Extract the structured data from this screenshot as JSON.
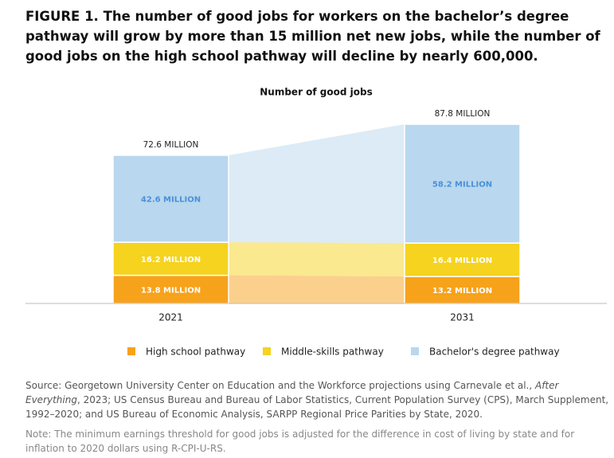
{
  "chart_data": {
    "type": "stacked-bar",
    "figure_label": "FIGURE 1.",
    "title": "The number of good jobs for workers on the bachelor’s degree pathway will grow by more than 15 million net new jobs, while the number of good jobs on the high school pathway will decline by nearly 600,000.",
    "subtitle": "Number of good jobs",
    "categories": [
      "2021",
      "2031"
    ],
    "series": [
      {
        "name": "High school pathway",
        "color": "#f7a21b",
        "values": [
          13.8,
          13.2
        ],
        "value_labels": [
          "13.8 MILLION",
          "13.2 MILLION"
        ]
      },
      {
        "name": "Middle-skills pathway",
        "color": "#f5d31f",
        "values": [
          16.2,
          16.4
        ],
        "value_labels": [
          "16.2 MILLION",
          "16.4 MILLION"
        ]
      },
      {
        "name": "Bachelor's degree pathway",
        "color": "#b9d7ee",
        "values": [
          42.6,
          58.2
        ],
        "value_labels": [
          "42.6 MILLION",
          "58.2 MILLION"
        ]
      }
    ],
    "totals": {
      "values": [
        72.6,
        87.8
      ],
      "value_labels": [
        "72.6 MILLION",
        "87.8 MILLION"
      ]
    },
    "source": [
      "Source: Georgetown University Center on Education and the Workforce projections using Carnevale et al., ",
      "After Everything",
      ", 2023; US Census Bureau and Bureau of Labor Statistics, Current Population Survey (CPS), March Supplement, 1992–2020; and US Bureau of Economic Analysis, SARPP Regional Price Parities by State, 2020."
    ],
    "note": "Note: The minimum earnings threshold for good jobs is adjusted for the difference in cost of living by state and for inflation to 2020 dollars using R-CPI-U-RS."
  }
}
